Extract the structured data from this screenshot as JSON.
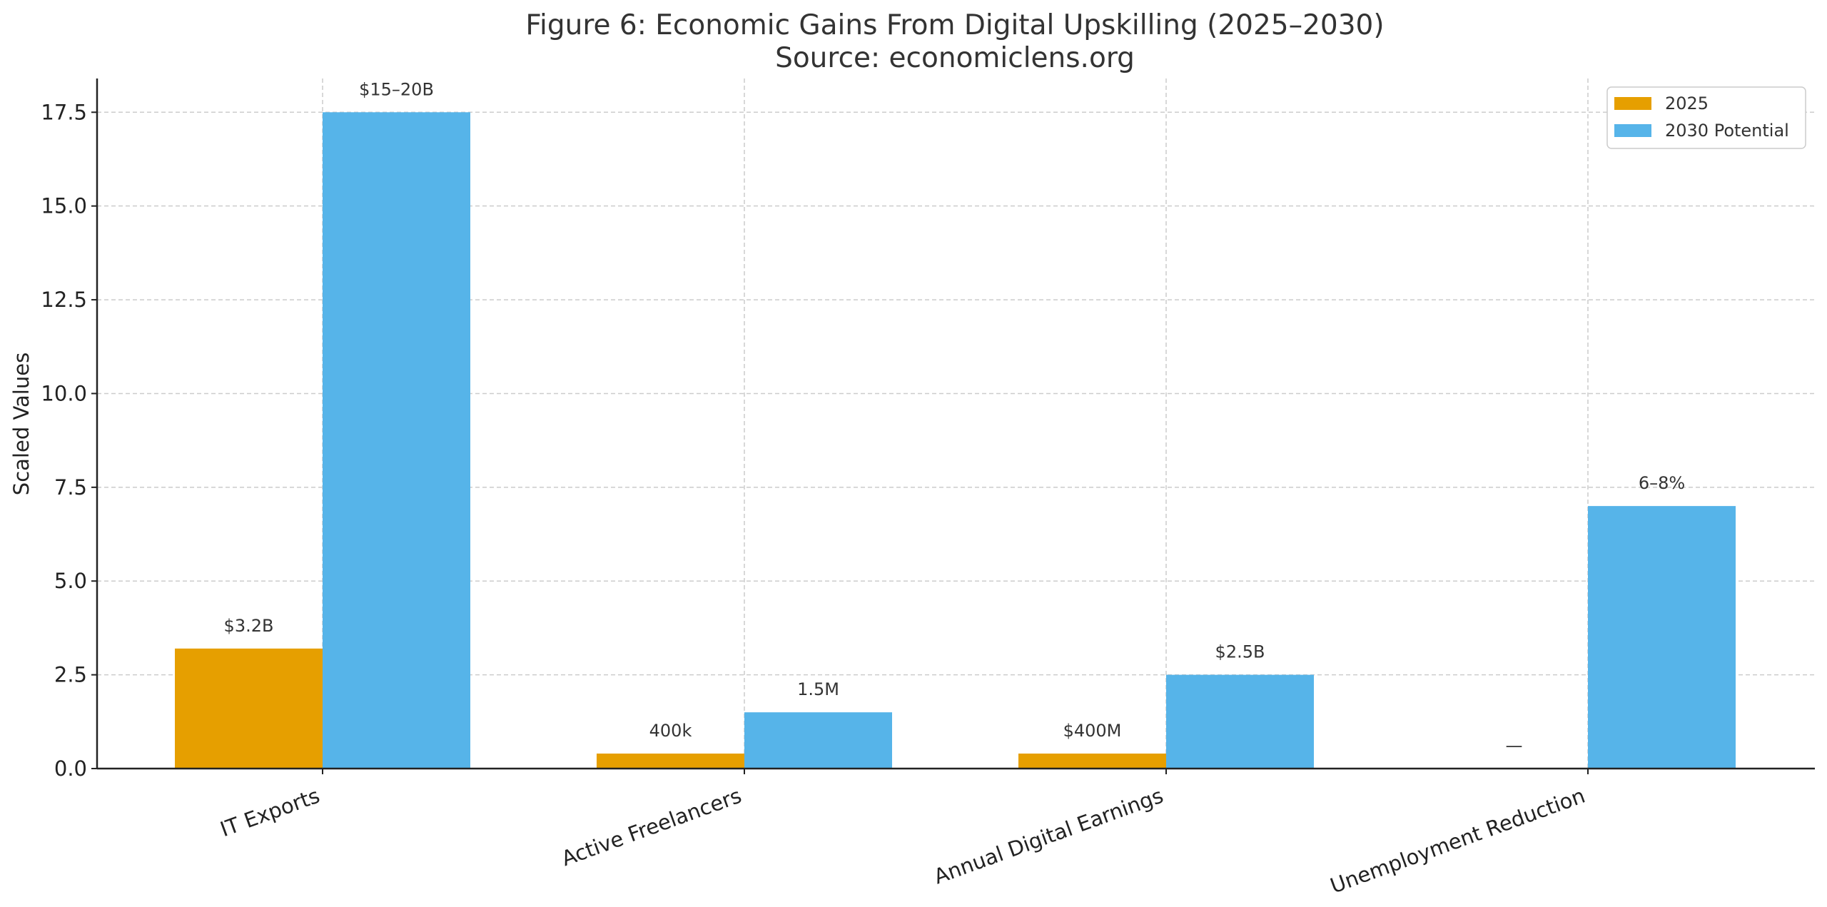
{
  "chart_data": {
    "type": "bar",
    "title": "Figure 6: Economic Gains From Digital Upskilling (2025–2030)",
    "subtitle": "Source: economiclens.org",
    "xlabel": "",
    "ylabel": "Scaled Values",
    "ylim": [
      0,
      18.4
    ],
    "yticks": [
      0.0,
      2.5,
      5.0,
      7.5,
      10.0,
      12.5,
      15.0,
      17.5
    ],
    "ytick_labels": [
      "0.0",
      "2.5",
      "5.0",
      "7.5",
      "10.0",
      "12.5",
      "15.0",
      "17.5"
    ],
    "categories": [
      "IT Exports",
      "Active Freelancers",
      "Annual Digital Earnings",
      "Unemployment Reduction"
    ],
    "series": [
      {
        "name": "2025",
        "color": "#E69F00",
        "values": [
          3.2,
          0.4,
          0.4,
          0
        ],
        "labels": [
          "$3.2B",
          "400k",
          "$400M",
          "—"
        ]
      },
      {
        "name": "2030 Potential",
        "color": "#56B4E9",
        "values": [
          17.5,
          1.5,
          2.5,
          7.0
        ],
        "labels": [
          "$15–20B",
          "1.5M",
          "$2.5B",
          "6–8%"
        ]
      }
    ],
    "grid": true,
    "legend_position": "top-right"
  }
}
